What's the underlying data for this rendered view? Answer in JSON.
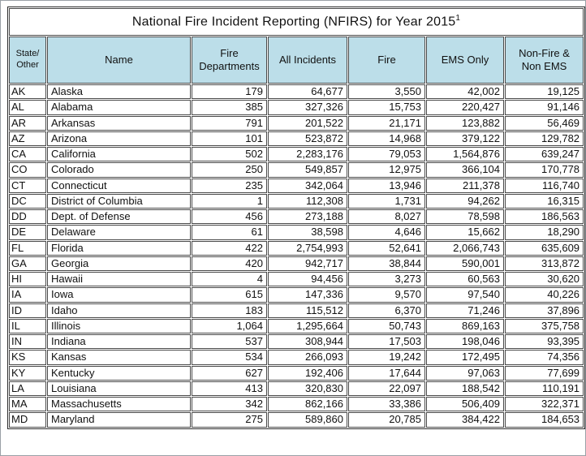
{
  "colors": {
    "header_bg": "#bcdee9",
    "grid_color": "#4a4a4a",
    "outer_border": "#2b2b2b",
    "frame_color": "#9aa0a6"
  },
  "chart_data": {
    "type": "table",
    "title": "National Fire Incident Reporting (NFIRS) for Year 2015",
    "title_superscript": "1",
    "columns": [
      "State/\nOther",
      "Name",
      "Fire\nDepartments",
      "All Incidents",
      "Fire",
      "EMS Only",
      "Non-Fire &\nNon EMS"
    ],
    "rows": [
      [
        "AK",
        "Alaska",
        "179",
        "64,677",
        "3,550",
        "42,002",
        "19,125"
      ],
      [
        "AL",
        "Alabama",
        "385",
        "327,326",
        "15,753",
        "220,427",
        "91,146"
      ],
      [
        "AR",
        "Arkansas",
        "791",
        "201,522",
        "21,171",
        "123,882",
        "56,469"
      ],
      [
        "AZ",
        "Arizona",
        "101",
        "523,872",
        "14,968",
        "379,122",
        "129,782"
      ],
      [
        "CA",
        "California",
        "502",
        "2,283,176",
        "79,053",
        "1,564,876",
        "639,247"
      ],
      [
        "CO",
        "Colorado",
        "250",
        "549,857",
        "12,975",
        "366,104",
        "170,778"
      ],
      [
        "CT",
        "Connecticut",
        "235",
        "342,064",
        "13,946",
        "211,378",
        "116,740"
      ],
      [
        "DC",
        "District of Columbia",
        "1",
        "112,308",
        "1,731",
        "94,262",
        "16,315"
      ],
      [
        "DD",
        "Dept. of Defense",
        "456",
        "273,188",
        "8,027",
        "78,598",
        "186,563"
      ],
      [
        "DE",
        "Delaware",
        "61",
        "38,598",
        "4,646",
        "15,662",
        "18,290"
      ],
      [
        "FL",
        "Florida",
        "422",
        "2,754,993",
        "52,641",
        "2,066,743",
        "635,609"
      ],
      [
        "GA",
        "Georgia",
        "420",
        "942,717",
        "38,844",
        "590,001",
        "313,872"
      ],
      [
        "HI",
        "Hawaii",
        "4",
        "94,456",
        "3,273",
        "60,563",
        "30,620"
      ],
      [
        "IA",
        "Iowa",
        "615",
        "147,336",
        "9,570",
        "97,540",
        "40,226"
      ],
      [
        "ID",
        "Idaho",
        "183",
        "115,512",
        "6,370",
        "71,246",
        "37,896"
      ],
      [
        "IL",
        "Illinois",
        "1,064",
        "1,295,664",
        "50,743",
        "869,163",
        "375,758"
      ],
      [
        "IN",
        "Indiana",
        "537",
        "308,944",
        "17,503",
        "198,046",
        "93,395"
      ],
      [
        "KS",
        "Kansas",
        "534",
        "266,093",
        "19,242",
        "172,495",
        "74,356"
      ],
      [
        "KY",
        "Kentucky",
        "627",
        "192,406",
        "17,644",
        "97,063",
        "77,699"
      ],
      [
        "LA",
        "Louisiana",
        "413",
        "320,830",
        "22,097",
        "188,542",
        "110,191"
      ],
      [
        "MA",
        "Massachusetts",
        "342",
        "862,166",
        "33,386",
        "506,409",
        "322,371"
      ],
      [
        "MD",
        "Maryland",
        "275",
        "589,860",
        "20,785",
        "384,422",
        "184,653"
      ]
    ]
  }
}
